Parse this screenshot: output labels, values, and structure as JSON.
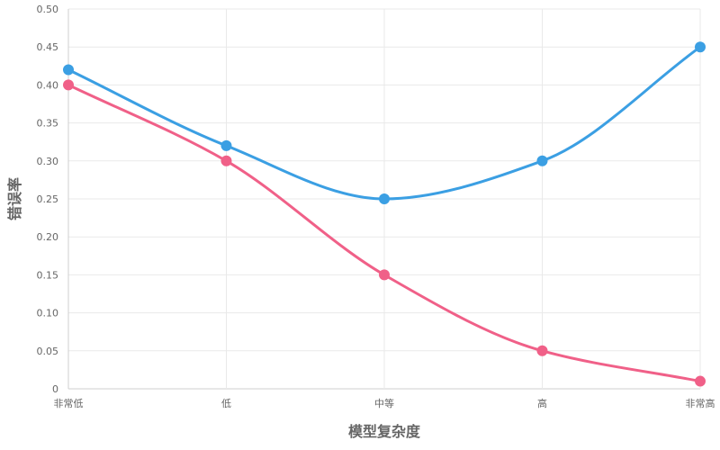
{
  "chart_data": {
    "type": "line",
    "categories": [
      "非常低",
      "低",
      "中等",
      "高",
      "非常高"
    ],
    "series": [
      {
        "values": [
          0.42,
          0.32,
          0.25,
          0.3,
          0.45
        ],
        "color": "#3b9fe3"
      },
      {
        "values": [
          0.4,
          0.3,
          0.15,
          0.05,
          0.01
        ],
        "color": "#f06088"
      }
    ],
    "xlabel": "模型复杂度",
    "ylabel": "错误率",
    "ylim": [
      0,
      0.5
    ],
    "yticks": [
      "0",
      "0.05",
      "0.10",
      "0.15",
      "0.20",
      "0.25",
      "0.30",
      "0.35",
      "0.40",
      "0.45",
      "0.50"
    ],
    "grid": true
  }
}
